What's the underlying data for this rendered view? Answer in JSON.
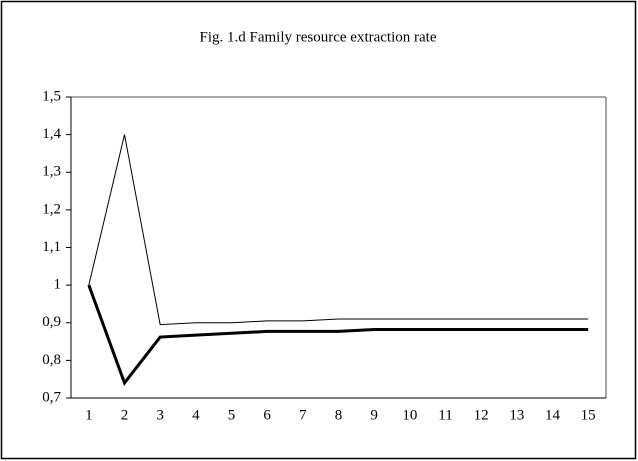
{
  "chart_data": {
    "type": "line",
    "title": "Fig. 1.d Family resource extraction rate",
    "categories": [
      1,
      2,
      3,
      4,
      5,
      6,
      7,
      8,
      9,
      10,
      11,
      12,
      13,
      14,
      15
    ],
    "series": [
      {
        "color": "#000000",
        "line_width": 1,
        "values": [
          1,
          1.4,
          0.895,
          0.9,
          0.9,
          0.905,
          0.905,
          0.91,
          0.91,
          0.91,
          0.91,
          0.91,
          0.91,
          0.91,
          0.91
        ]
      },
      {
        "color": "#000000",
        "line_width": 3,
        "values": [
          1,
          0.74,
          0.862,
          0.867,
          0.872,
          0.877,
          0.877,
          0.877,
          0.882,
          0.882,
          0.882,
          0.882,
          0.882,
          0.882,
          0.882
        ]
      }
    ],
    "ylim": [
      0.7,
      1.5
    ],
    "yticks": [
      {
        "value": 0.7,
        "label": "0,7"
      },
      {
        "value": 0.8,
        "label": "0,8"
      },
      {
        "value": 0.9,
        "label": "0,9"
      },
      1,
      {
        "value": 1.1,
        "label": "1,1"
      },
      {
        "value": 1.2,
        "label": "1,2"
      },
      {
        "value": 1.3,
        "label": "1,3"
      },
      {
        "value": 1.4,
        "label": "1,4"
      },
      {
        "value": 1.5,
        "label": "1,5"
      }
    ],
    "grid": false
  }
}
